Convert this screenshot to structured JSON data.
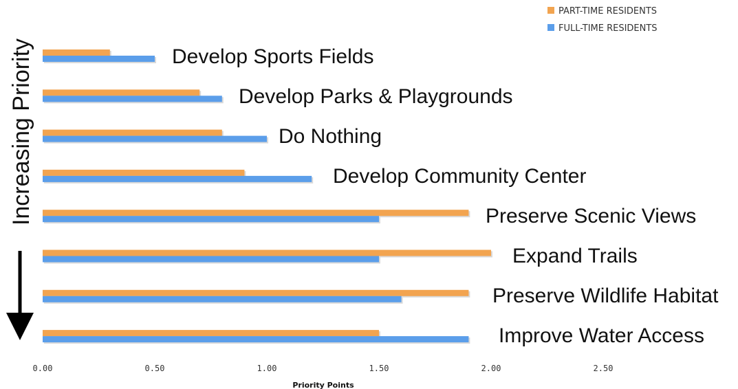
{
  "chart_data": {
    "type": "bar",
    "orientation": "horizontal",
    "categories": [
      "Develop Sports Fields",
      "Develop Parks & Playgrounds",
      "Do Nothing",
      "Develop Community Center",
      "Preserve Scenic Views",
      "Expand Trails",
      "Preserve Wildlife Habitat",
      "Improve Water Access"
    ],
    "series": [
      {
        "name": "PART-TIME RESIDENTS",
        "color": "#F2A450",
        "values": [
          0.3,
          0.7,
          0.8,
          0.9,
          1.9,
          2.0,
          1.9,
          1.5
        ]
      },
      {
        "name": "FULL-TIME RESIDENTS",
        "color": "#5B9EEA",
        "values": [
          0.5,
          0.8,
          1.0,
          1.2,
          1.5,
          1.5,
          1.6,
          1.9
        ]
      }
    ],
    "xlabel": "Priority Points",
    "ylabel": "Increasing Priority",
    "xlim": [
      0,
      2.5
    ],
    "xticks": [
      "0.00",
      "0.50",
      "1.00",
      "1.50",
      "2.00",
      "2.50"
    ],
    "grid": false,
    "legend_position": "top-right"
  }
}
